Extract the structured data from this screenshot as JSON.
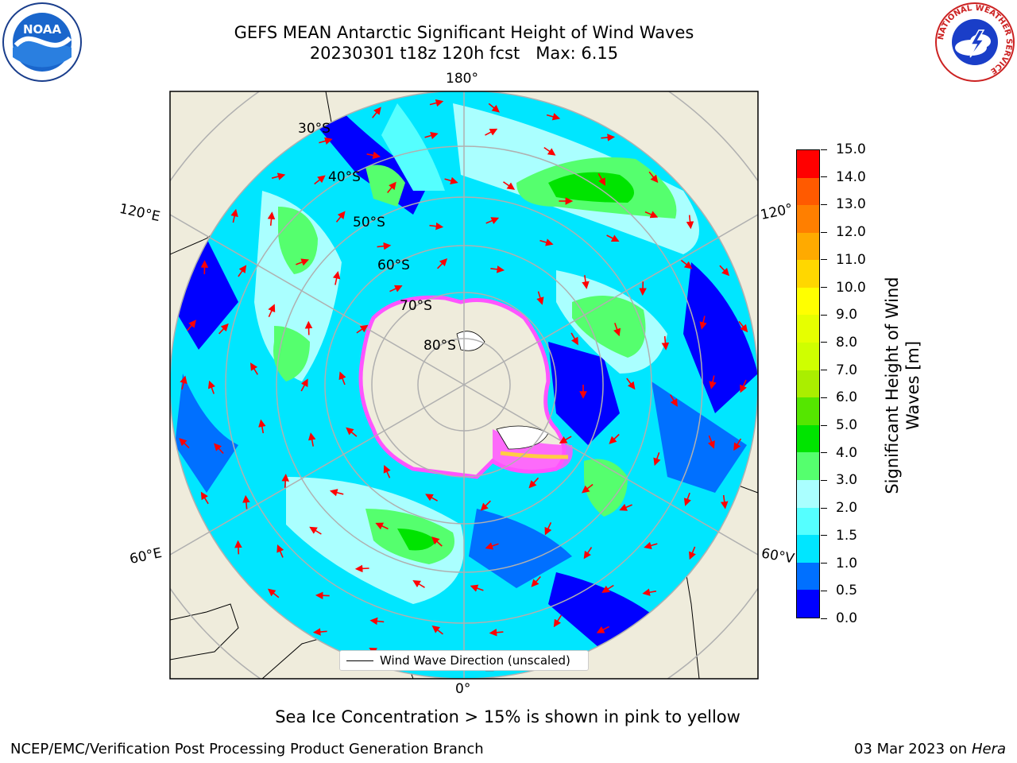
{
  "title": {
    "line1": "GEFS MEAN Antarctic Significant Height of Wind Waves",
    "line2": "20230301 t18z 120h fcst   Max: 6.15"
  },
  "logos": {
    "left": "NOAA",
    "right_ring": "NATIONAL WEATHER SERVICE"
  },
  "map": {
    "projection": "south-polar-stereographic",
    "lon_labels": {
      "top": "180°",
      "bottom": "0°",
      "upper_left": "120°E",
      "upper_right": "120°",
      "lower_left": "60°E",
      "lower_right": "60°V"
    },
    "lat_labels": [
      "30°S",
      "40°S",
      "50°S",
      "60°S",
      "70°S",
      "80°S"
    ],
    "colors": {
      "land": "#efecdc",
      "ice_pink": "#ff55ff",
      "ice_yellow": "#ffcc44",
      "arrows": "#ff0000",
      "gridlines": "#b0b0b0"
    },
    "legend": {
      "label": "Wind Wave Direction (unscaled)"
    }
  },
  "colorbar": {
    "title": "Significant Height of Wind Waves [m]",
    "ticks": [
      "0.0",
      "0.5",
      "1.0",
      "1.5",
      "2.0",
      "3.0",
      "4.0",
      "5.0",
      "6.0",
      "7.0",
      "8.0",
      "9.0",
      "10.0",
      "11.0",
      "12.0",
      "13.0",
      "14.0",
      "15.0"
    ],
    "colors": [
      "#0000ff",
      "#0070ff",
      "#00e6ff",
      "#55ffff",
      "#aaffff",
      "#55ff6e",
      "#00e400",
      "#55e600",
      "#aaee00",
      "#cfff00",
      "#e6ff00",
      "#ffff00",
      "#ffd700",
      "#ffaa00",
      "#ff7f00",
      "#ff5a00",
      "#ff0000"
    ]
  },
  "subtitle": "Sea Ice Concentration > 15% is shown in pink to yellow",
  "footer": {
    "left": "NCEP/EMC/Verification Post Processing Product Generation Branch",
    "right_date": "03 Mar 2023 on",
    "right_host": "Hera"
  }
}
